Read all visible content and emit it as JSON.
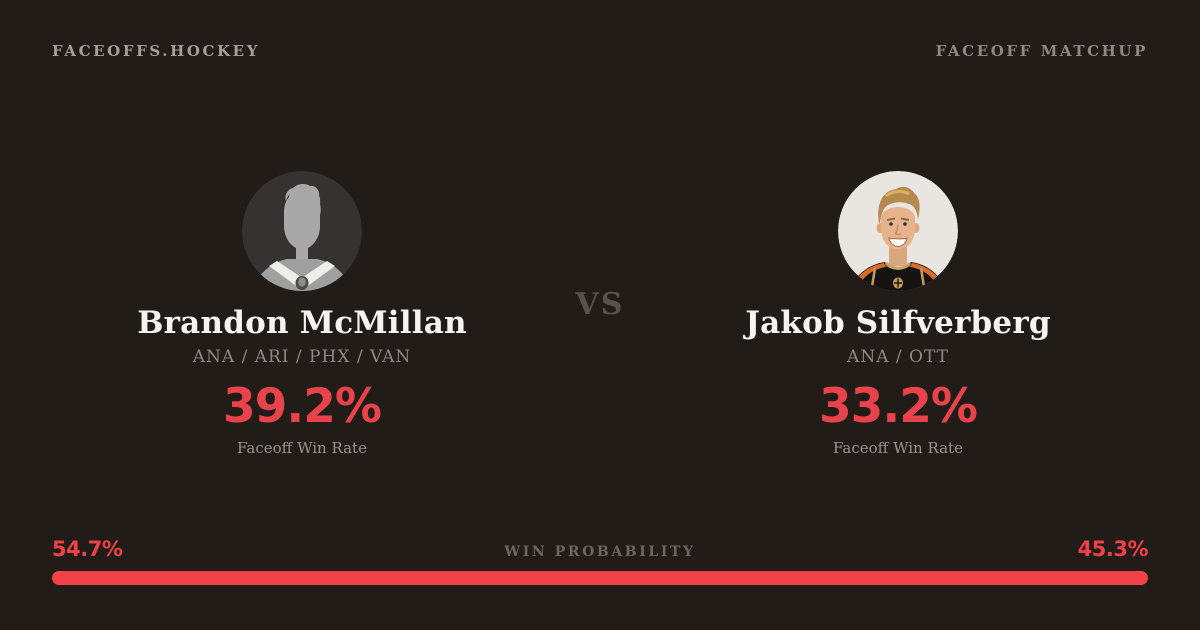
{
  "page": {
    "background": "#211c18",
    "accent_red": "#ef4146"
  },
  "header": {
    "brand": "FACEOFFS.HOCKEY",
    "page_label": "FACEOFF MATCHUP"
  },
  "matchup": {
    "vs_label": "VS",
    "players": [
      {
        "name": "Brandon McMillan",
        "teams": "ANA / ARI / PHX / VAN",
        "win_rate": "39.2%",
        "win_rate_label": "Faceoff Win Rate",
        "avatar": "generic-player-silhouette"
      },
      {
        "name": "Jakob Silfverberg",
        "teams": "ANA / OTT",
        "win_rate": "33.2%",
        "win_rate_label": "Faceoff Win Rate",
        "avatar": "player-headshot-ducks-jersey"
      }
    ]
  },
  "probability": {
    "label": "WIN PROBABILITY",
    "left_text": "54.7%",
    "right_text": "45.3%",
    "left_value": 54.7,
    "right_value": 45.3,
    "bar_color": "#ef4146"
  },
  "chart_data": {
    "type": "bar",
    "title": "FACEOFF MATCHUP",
    "categories": [
      "Brandon McMillan",
      "Jakob Silfverberg"
    ],
    "series": [
      {
        "name": "Faceoff Win Rate (%)",
        "values": [
          39.2,
          33.2
        ]
      },
      {
        "name": "Win Probability (%)",
        "values": [
          54.7,
          45.3
        ]
      }
    ],
    "layout": "single horizontal stacked probability bar at bottom; left segment = McMillan 54.7%, right segment = Silfverberg 45.3%",
    "legend_position": "none"
  }
}
